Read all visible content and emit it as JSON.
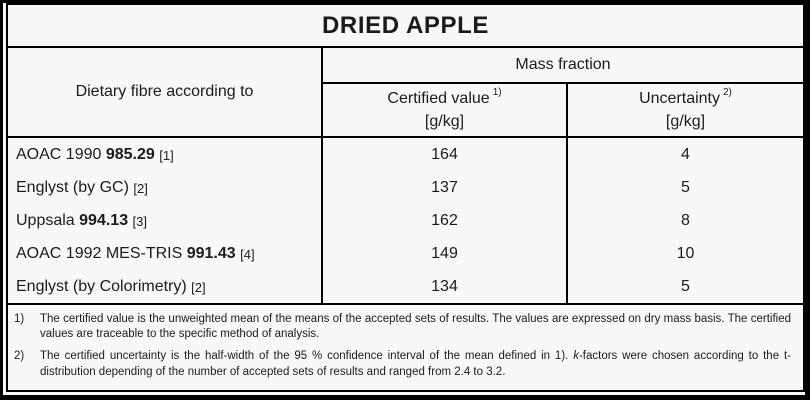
{
  "title": "DRIED APPLE",
  "table": {
    "row_header": "Dietary fibre according to",
    "group_header": "Mass fraction",
    "columns": [
      {
        "label": "Certified value",
        "sup": "1)",
        "unit": "[g/kg]"
      },
      {
        "label": "Uncertainty",
        "sup": "2)",
        "unit": "[g/kg]"
      }
    ],
    "rows": [
      {
        "method_pre": "AOAC 1990",
        "method_bold": "985.29",
        "ref": "[1]",
        "certified_value": "164",
        "uncertainty": "4"
      },
      {
        "method_pre": "Englyst (by GC)",
        "method_bold": "",
        "ref": "[2]",
        "certified_value": "137",
        "uncertainty": "5"
      },
      {
        "method_pre": "Uppsala",
        "method_bold": "994.13",
        "ref": "[3]",
        "certified_value": "162",
        "uncertainty": "8"
      },
      {
        "method_pre": "AOAC 1992 MES-TRIS",
        "method_bold": "991.43",
        "ref": "[4]",
        "certified_value": "149",
        "uncertainty": "10"
      },
      {
        "method_pre": "Englyst (by Colorimetry)",
        "method_bold": "",
        "ref": "[2]",
        "certified_value": "134",
        "uncertainty": "5"
      }
    ]
  },
  "footnotes": [
    {
      "marker": "1)",
      "text": "The certified value is the unweighted mean of the means of the accepted sets of results. The values are expressed on dry mass basis. The certified values are traceable to the specific method of analysis."
    },
    {
      "marker": "2)",
      "text_pre": "The certified uncertainty is the half-width of the 95 % confidence interval of the mean defined in 1). ",
      "italic": "k",
      "text_post": "-factors were chosen according to the t-distribution depending of the number of accepted sets of results and ranged from 2.4 to 3.2."
    }
  ],
  "colors": {
    "border": "#000000",
    "text": "#1b1b1b",
    "background": "#f8f8f6"
  }
}
